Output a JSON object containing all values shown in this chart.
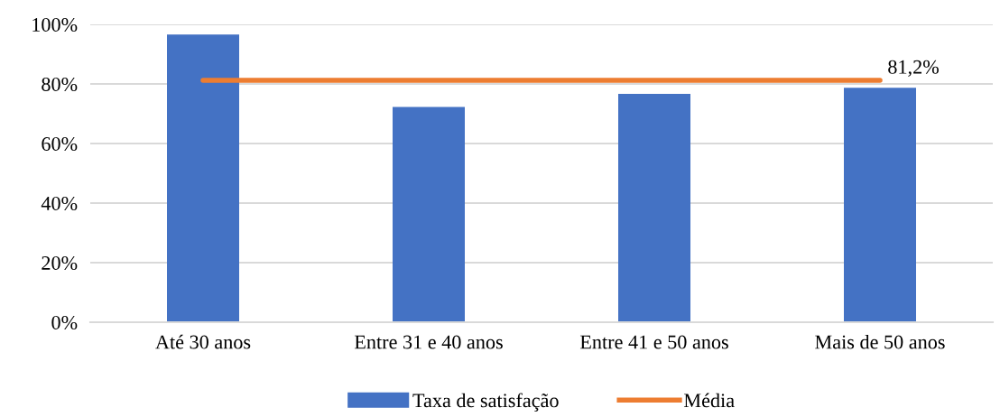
{
  "chart_data": {
    "type": "bar",
    "categories": [
      "Até 30 anos",
      "Entre 31 e 40 anos",
      "Entre 41 e 50 anos",
      "Mais de 50 anos"
    ],
    "series": [
      {
        "name": "Taxa de satisfação",
        "color": "#4472c4",
        "values": [
          96.6,
          72.3,
          76.7,
          78.7
        ]
      },
      {
        "name": "Média",
        "type": "line",
        "color": "#ed7d31",
        "values": [
          81.2,
          81.2,
          81.2,
          81.2
        ],
        "value_labels": [
          null,
          null,
          null,
          "81,2%"
        ]
      }
    ],
    "ylim": [
      0,
      100
    ],
    "yticks": [
      {
        "value": 0,
        "label": "0%"
      },
      {
        "value": 20,
        "label": "20%"
      },
      {
        "value": 40,
        "label": "40%"
      },
      {
        "value": 60,
        "label": "60%"
      },
      {
        "value": 80,
        "label": "80%"
      },
      {
        "value": 100,
        "label": "100%"
      }
    ],
    "grid": "y",
    "legend": "bottom",
    "marker": "none"
  }
}
